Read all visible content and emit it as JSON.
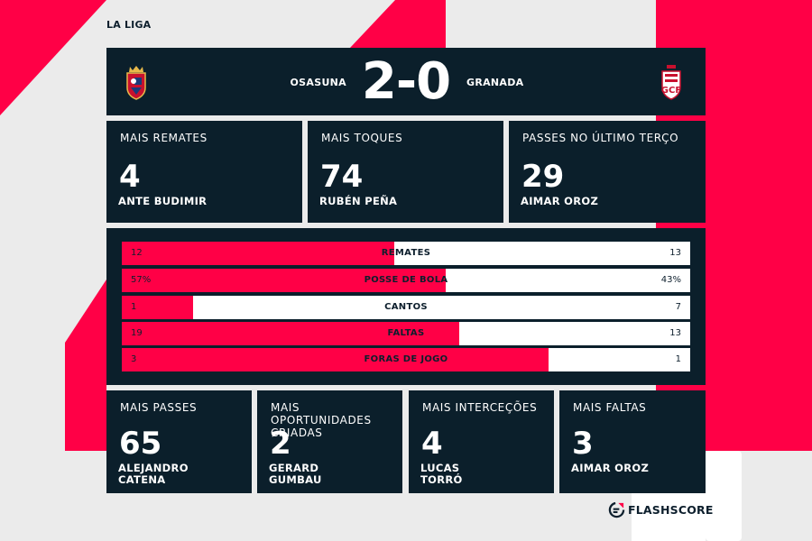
{
  "league": "LA LIGA",
  "match": {
    "home_team": "OSASUNA",
    "away_team": "GRANADA",
    "score": "2-0",
    "home_crest": "osasuna-crest-icon",
    "away_crest": "granada-crest-icon"
  },
  "top_stats": [
    {
      "label": "MAIS REMATES",
      "value": "4",
      "player": "ANTE BUDIMIR"
    },
    {
      "label": "MAIS TOQUES",
      "value": "74",
      "player": "RUBÉN PEÑA"
    },
    {
      "label": "PASSES NO ÚLTIMO TERÇO",
      "value": "29",
      "player": "AIMAR OROZ"
    }
  ],
  "comparison": [
    {
      "label": "REMATES",
      "home": "12",
      "away": "13",
      "home_share": 0.48
    },
    {
      "label": "POSSE DE BOLA",
      "home": "57%",
      "away": "43%",
      "home_share": 0.57
    },
    {
      "label": "CANTOS",
      "home": "1",
      "away": "7",
      "home_share": 0.125
    },
    {
      "label": "FALTAS",
      "home": "19",
      "away": "13",
      "home_share": 0.594
    },
    {
      "label": "FORAS DE JOGO",
      "home": "3",
      "away": "1",
      "home_share": 0.75
    }
  ],
  "bottom_stats": [
    {
      "label": "MAIS PASSES",
      "value": "65",
      "player": "ALEJANDRO\nCATENA"
    },
    {
      "label": "MAIS OPORTUNIDADES CRIADAS",
      "value": "2",
      "player": "GERARD\nGUMBAU"
    },
    {
      "label": "MAIS INTERCEÇÕES",
      "value": "4",
      "player": "LUCAS\nTORRÓ"
    },
    {
      "label": "MAIS FALTAS",
      "value": "3",
      "player": "AIMAR OROZ"
    }
  ],
  "brand": {
    "name": "FLASHSCORE",
    "icon": "flashscore-logo-icon"
  },
  "colors": {
    "accent": "#ff0046",
    "panel": "#0b1f2b",
    "background": "#ebebeb"
  }
}
